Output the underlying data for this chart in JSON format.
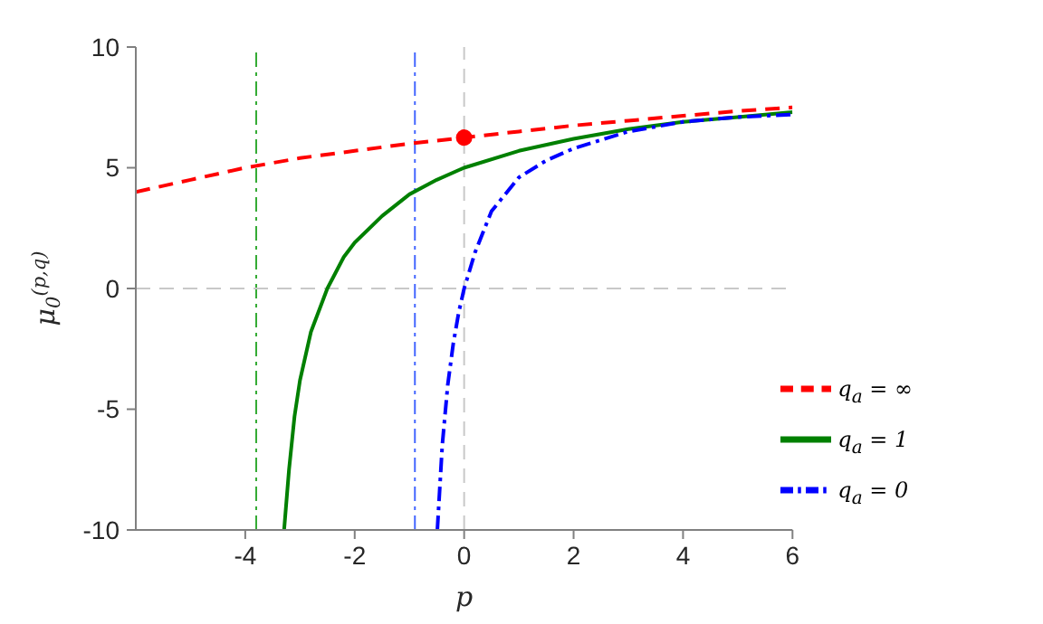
{
  "chart_data": {
    "type": "line",
    "xlabel": "p",
    "ylabel": "μ$_{0}$$^{(p,q)}$",
    "xlim": [
      -6,
      6
    ],
    "xticks": [
      -4,
      -2,
      0,
      2,
      4,
      6
    ],
    "ylim": [
      -10,
      10
    ],
    "yticks": [
      -10,
      -5,
      0,
      5,
      10
    ],
    "grid": false,
    "legend": "bottom right",
    "marker": "none",
    "series": [
      {
        "name": "q$_{a}$ = ∞",
        "color": "#ff0000",
        "line_style": "dashed",
        "x": [
          -6,
          -5,
          -4,
          -3,
          -2,
          -1,
          0,
          1,
          2,
          3,
          4,
          5,
          6
        ],
        "values": [
          4,
          4.5,
          5,
          5.4,
          5.7,
          6,
          6.25,
          6.5,
          6.75,
          6.95,
          7.15,
          7.35,
          7.5
        ]
      },
      {
        "name": "q$_{a}$ = 1",
        "color": "#008000",
        "line_style": "solid",
        "x": [
          -3.29,
          -3.2,
          -3.1,
          -3,
          -2.8,
          -2.5,
          -2.2,
          -2,
          -1.5,
          -1,
          -0.5,
          0,
          1,
          2,
          3,
          4,
          5,
          6
        ],
        "values": [
          -10,
          -7.5,
          -5.3,
          -3.8,
          -1.8,
          0,
          1.3,
          1.9,
          3,
          3.9,
          4.5,
          5,
          5.7,
          6.2,
          6.6,
          6.9,
          7.1,
          7.3
        ]
      },
      {
        "name": "q$_{a}$ = 0",
        "color": "#0000ff",
        "line_style": "dashdot",
        "x": [
          -0.49,
          -0.4,
          -0.3,
          -0.2,
          -0.1,
          0,
          0.2,
          0.5,
          1,
          1.5,
          2,
          3,
          4,
          5,
          6
        ],
        "values": [
          -10,
          -6.5,
          -4,
          -2.3,
          -1,
          0,
          1.5,
          3.2,
          4.6,
          5.3,
          5.8,
          6.5,
          6.9,
          7.1,
          7.2
        ]
      },
      {
        "type": "scatter",
        "color": "#ff0000",
        "marker": "circle",
        "x": [
          0
        ],
        "values": [
          6.25
        ]
      }
    ],
    "ref_lines": [
      {
        "axis": "x",
        "value": -3.8,
        "color": "#33aa33",
        "line_style": "dashdot"
      },
      {
        "axis": "x",
        "value": -0.9,
        "color": "#4466ff",
        "line_style": "dashdot"
      },
      {
        "axis": "x",
        "value": 0,
        "color": "#c8c8c8",
        "line_style": "dashed"
      },
      {
        "axis": "y",
        "value": 0,
        "color": "#c8c8c8",
        "line_style": "dashed"
      }
    ]
  }
}
